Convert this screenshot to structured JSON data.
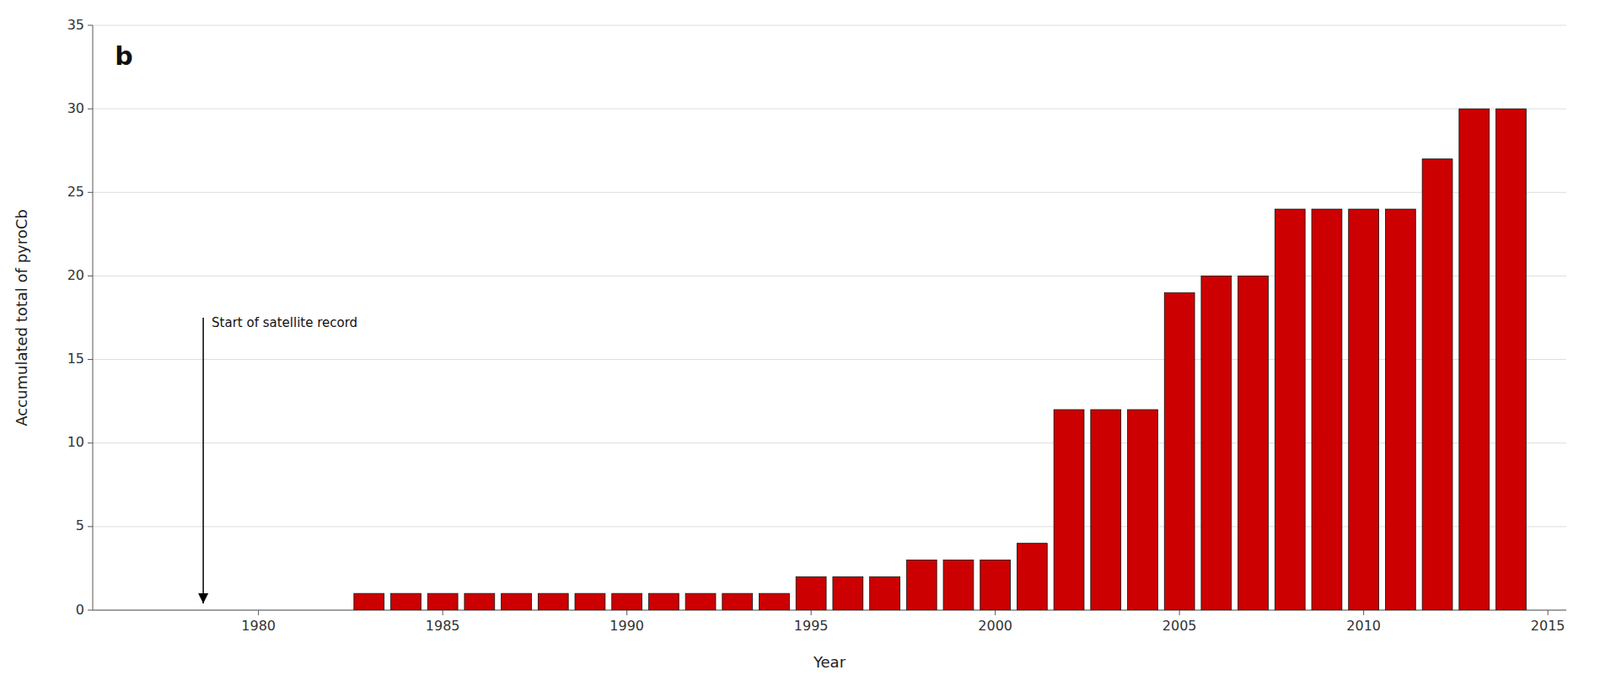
{
  "chart_data": {
    "type": "bar",
    "title": "b",
    "xlabel": "Year",
    "ylabel": "Accumulated total of pyroCb",
    "x": [
      1983,
      1984,
      1985,
      1986,
      1987,
      1988,
      1989,
      1990,
      1991,
      1992,
      1993,
      1994,
      1995,
      1996,
      1997,
      1998,
      1999,
      2000,
      2001,
      2002,
      2003,
      2004,
      2005,
      2006,
      2007,
      2008,
      2009,
      2010,
      2011,
      2012,
      2013,
      2014
    ],
    "values": [
      1,
      1,
      1,
      1,
      1,
      1,
      1,
      1,
      1,
      1,
      1,
      1,
      2,
      2,
      2,
      3,
      3,
      3,
      4,
      12,
      12,
      12,
      19,
      20,
      20,
      24,
      24,
      24,
      24,
      27,
      30,
      30
    ],
    "color": "#cc0000",
    "xlim": [
      1975.5,
      2015.5
    ],
    "xticks": [
      1980,
      1985,
      1990,
      1995,
      2000,
      2005,
      2010,
      2015
    ],
    "ylim": [
      0,
      35
    ],
    "yticks": [
      0,
      5,
      10,
      15,
      20,
      25,
      30,
      35
    ],
    "grid": true,
    "annotations": [
      {
        "text": "Start of satellite record",
        "x": 1978.5,
        "y": 0.4,
        "text_y": 17.5
      }
    ]
  }
}
